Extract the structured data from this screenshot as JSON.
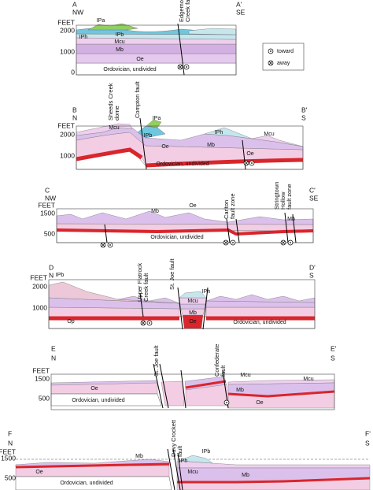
{
  "legend": {
    "toward": "toward",
    "away": "away"
  },
  "sections": [
    {
      "start": "A",
      "start_dir": "NW",
      "end": "A'",
      "end_dir": "SE",
      "units": "FEET",
      "elevations": [
        2000,
        1000,
        0
      ],
      "faults": [
        [
          "Edgemon",
          "Creek fault"
        ]
      ],
      "labels": [
        "IPa",
        "IPb",
        "IPh",
        "Mcu",
        "Mb",
        "Oe",
        "Ordovician, undivided"
      ]
    },
    {
      "start": "B",
      "start_dir": "N",
      "end": "B'",
      "end_dir": "S",
      "units": "FEET",
      "elevations": [
        2000,
        1000
      ],
      "faults": [
        [
          "Sheeds Creek",
          "dome"
        ],
        [
          "Compton fault"
        ]
      ],
      "labels": [
        "Mcu",
        "IPa",
        "IPb",
        "IPh",
        "Mcu",
        "Mb",
        "Oe",
        "Oe",
        "Ordovician, undivided"
      ]
    },
    {
      "start": "C",
      "start_dir": "NW",
      "end": "C'",
      "end_dir": "SE",
      "units": "FEET",
      "elevations": [
        1500,
        500
      ],
      "faults": [
        [
          "Carlton",
          "fault zone"
        ],
        [
          "Stringtown",
          "Hollow",
          "fault zone"
        ]
      ],
      "labels": [
        "Mb",
        "Oe",
        "Ordovician, undivided",
        "Mb"
      ]
    },
    {
      "start": "D",
      "start_dir": "N",
      "end": "D'",
      "end_dir": "S",
      "units": "FEET",
      "elevations": [
        2000,
        1000
      ],
      "faults": [
        [
          "Upper Flatrock",
          "Creek fault"
        ],
        [
          "St. Joe fault"
        ]
      ],
      "labels": [
        "IPb",
        "IPh",
        "Mcu",
        "Mb",
        "Oe",
        "Op",
        "Ordovician, undivided"
      ]
    },
    {
      "start": "E",
      "start_dir": "N",
      "end": "E'",
      "end_dir": "S",
      "units": "FEET",
      "elevations": [
        1500,
        500
      ],
      "faults": [
        [
          "St. Joe fault"
        ],
        [
          "Confederate",
          "fault"
        ]
      ],
      "labels": [
        "Oe",
        "Ordovician, undivided",
        "Mcu",
        "Mb",
        "Mcu",
        "Oe"
      ]
    },
    {
      "start": "F",
      "start_dir": "N",
      "end": "F'",
      "end_dir": "S",
      "units": "FEET",
      "elevations": [
        1500,
        500
      ],
      "faults": [
        [
          "Davy Crockett",
          "fault"
        ]
      ],
      "labels": [
        "Mb",
        "IPh",
        "IPb",
        "Mcu",
        "Mb",
        "Oe",
        "Ordovician, undivided"
      ]
    }
  ]
}
